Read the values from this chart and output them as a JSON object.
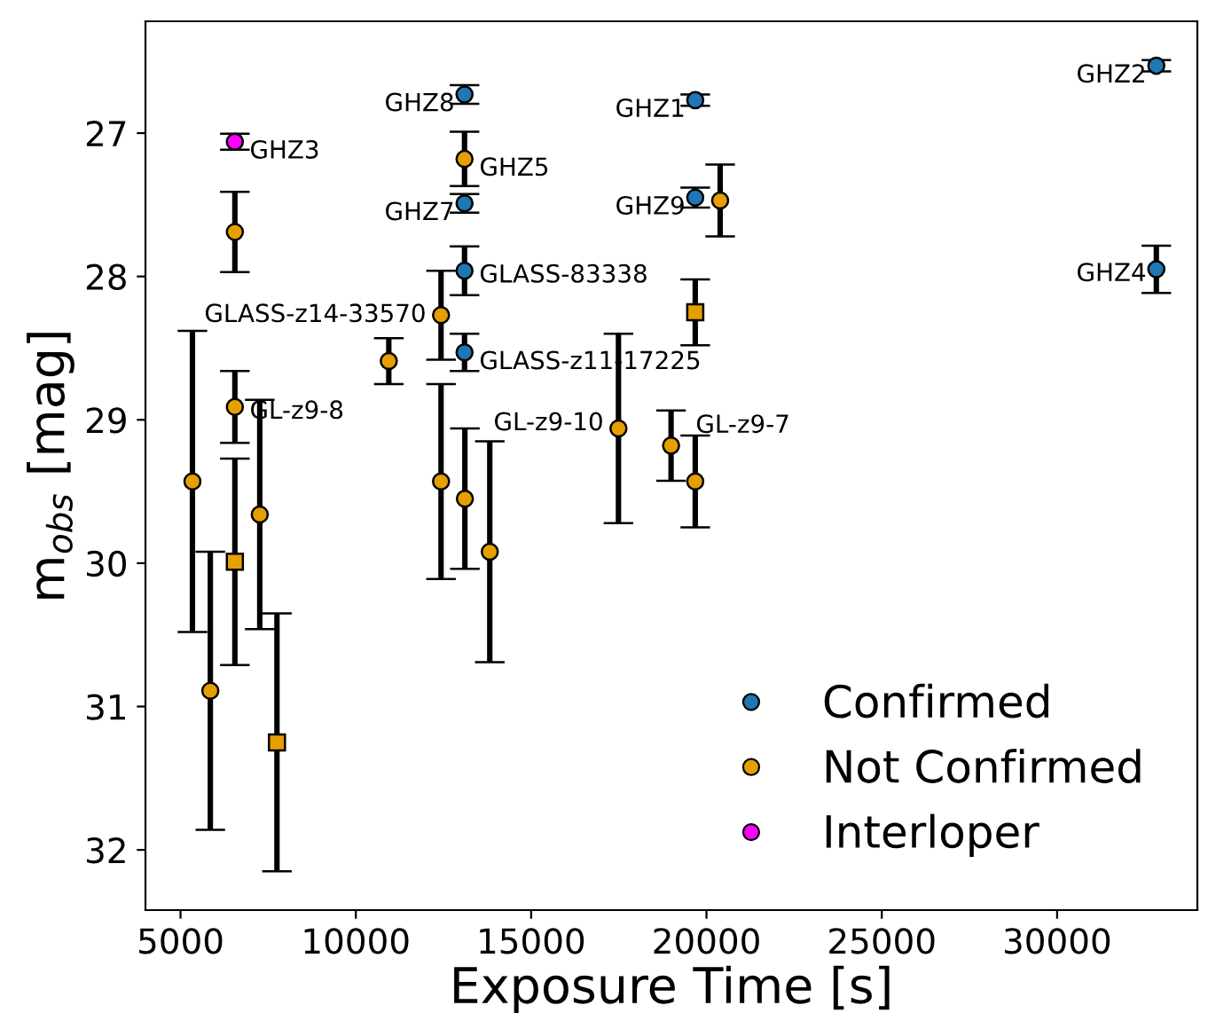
{
  "chart_data": {
    "type": "scatter",
    "xlabel": "Exposure Time [s]",
    "ylabel": "m$_{obs}$ [mag]",
    "xlim": [
      4000,
      34000
    ],
    "ylim": [
      32.42,
      26.22
    ],
    "xticks": [
      5000,
      10000,
      15000,
      20000,
      25000,
      30000
    ],
    "yticks": [
      27,
      28,
      29,
      30,
      31,
      32
    ],
    "grid": false,
    "legend": "bottom right",
    "series": [
      {
        "name": "Confirmed",
        "color": "#1f77b4",
        "marker": "circle",
        "x": [
          13100,
          13100,
          13100,
          13100,
          19680,
          19680,
          32830,
          32830
        ],
        "values": [
          26.73,
          27.49,
          27.96,
          28.53,
          26.77,
          27.45,
          26.53,
          27.95
        ],
        "errors": [
          0.065,
          0.065,
          0.17,
          0.13,
          0.04,
          0.07,
          0.04,
          0.165
        ]
      },
      {
        "name": "Not Confirmed",
        "color": "#e69f00",
        "marker": "circle",
        "x": [
          6550,
          13100,
          12430,
          10940,
          6550,
          5340,
          7260,
          5850,
          12430,
          13110,
          13820,
          17490,
          18990,
          19680,
          20390
        ],
        "values": [
          27.69,
          27.18,
          28.27,
          28.59,
          28.91,
          29.43,
          29.66,
          30.89,
          29.43,
          29.55,
          29.92,
          29.06,
          29.18,
          29.43,
          27.47
        ],
        "errors": [
          0.28,
          0.19,
          0.31,
          0.16,
          0.25,
          1.05,
          0.8,
          0.97,
          0.68,
          0.49,
          0.77,
          0.66,
          0.245,
          0.32,
          0.25
        ]
      },
      {
        "color": "#e69f00",
        "marker": "square",
        "x": [
          6550,
          7750,
          19680
        ],
        "values": [
          29.99,
          31.25,
          28.25
        ],
        "errors": [
          0.72,
          0.9,
          0.23
        ]
      },
      {
        "name": "Interloper",
        "color": "#ff00ff",
        "marker": "circle",
        "x": [
          6550
        ],
        "values": [
          27.06
        ],
        "errors": [
          0.055
        ]
      }
    ],
    "annotations": [
      {
        "text": "GHZ3",
        "x": 6550,
        "y": 27.06
      },
      {
        "text": "GHZ8",
        "x": 13100,
        "y": 26.73
      },
      {
        "text": "GHZ5",
        "x": 13100,
        "y": 27.18
      },
      {
        "text": "GHZ7",
        "x": 13100,
        "y": 27.49
      },
      {
        "text": "GLASS-83338",
        "x": 13100,
        "y": 27.96
      },
      {
        "text": "GLASS-z14-33570",
        "x": 12430,
        "y": 28.27
      },
      {
        "text": "GLASS-z11-17225",
        "x": 13100,
        "y": 28.53
      },
      {
        "text": "GL-z9-8",
        "x": 6550,
        "y": 28.91
      },
      {
        "text": "GHZ1",
        "x": 19680,
        "y": 26.77
      },
      {
        "text": "GHZ9",
        "x": 19680,
        "y": 27.45
      },
      {
        "text": "GHZ2",
        "x": 32830,
        "y": 26.53
      },
      {
        "text": "GHZ4",
        "x": 32830,
        "y": 27.95
      },
      {
        "text": "GL-z9-10",
        "x": 17490,
        "y": 29.06
      },
      {
        "text": "GL-z9-7",
        "x": 18990,
        "y": 29.18
      }
    ]
  }
}
